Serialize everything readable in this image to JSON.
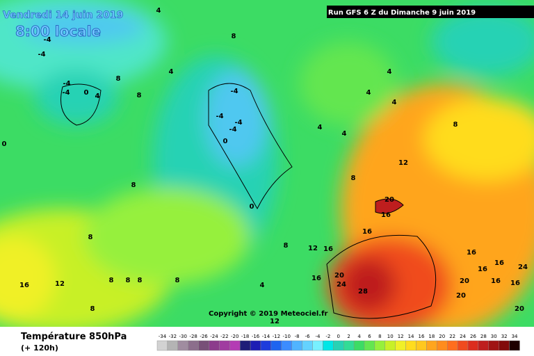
{
  "header": {
    "date": "Vendredi 14 juin 2019",
    "time": "8:00 locale",
    "run": "Run GFS 6 Z du Dimanche 9 juin 2019"
  },
  "copyright": "Copyright © 2019 Meteociel.fr",
  "footer": {
    "title": "Température 850hPa",
    "lead": "(+ 120h)"
  },
  "scale": {
    "values": [
      -34,
      -32,
      -30,
      -28,
      -26,
      -24,
      -22,
      -20,
      -18,
      -16,
      -14,
      -12,
      -10,
      -8,
      -6,
      -4,
      -2,
      0,
      2,
      4,
      6,
      8,
      10,
      12,
      14,
      16,
      18,
      20,
      22,
      24,
      26,
      28,
      30,
      32,
      34
    ],
    "colors": [
      "#d2d2d2",
      "#b4b4b4",
      "#a08ca0",
      "#8c6e8c",
      "#785078",
      "#8c3c8c",
      "#a03ca0",
      "#b43cb4",
      "#1e1e78",
      "#1e1eb4",
      "#1e3cdc",
      "#1e64f0",
      "#3c8cff",
      "#50b4ff",
      "#64d2ff",
      "#78f0ff",
      "#00e6e6",
      "#28d2b4",
      "#32dc96",
      "#3cdc64",
      "#64e650",
      "#96f03c",
      "#c8f028",
      "#f0f028",
      "#ffdc1e",
      "#ffc81e",
      "#ffa51e",
      "#ff8c1e",
      "#ff6e1e",
      "#f04b1e",
      "#dc2d1e",
      "#be1e1e",
      "#a01414",
      "#820a0a",
      "#1e0000"
    ]
  },
  "map_labels": [
    -4,
    -4,
    4,
    8,
    4,
    8,
    -4,
    -4,
    0,
    4,
    8,
    -4,
    -4,
    -4,
    -4,
    0,
    0,
    4,
    4,
    4,
    4,
    4,
    8,
    12,
    8,
    8,
    8,
    20,
    16,
    16,
    12,
    8,
    16,
    16,
    20,
    24,
    28,
    16,
    16,
    16,
    20,
    16,
    16,
    20,
    20,
    24,
    16,
    12,
    8,
    8,
    8,
    8,
    4,
    12,
    0,
    8
  ]
}
